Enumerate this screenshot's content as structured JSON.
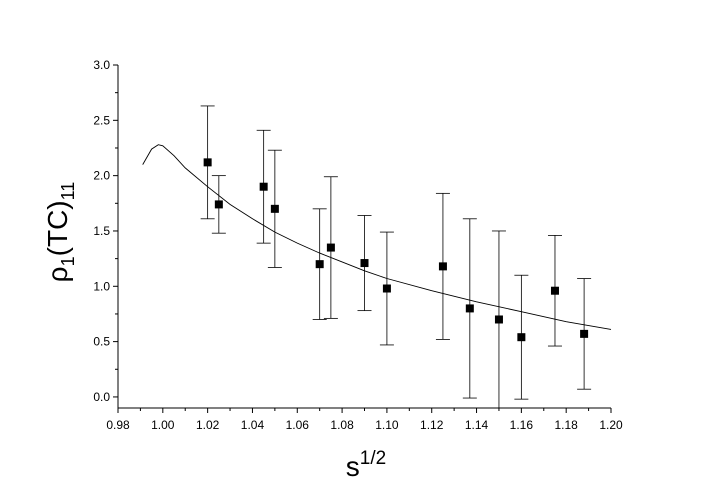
{
  "chart_data": {
    "type": "scatter",
    "title": "",
    "xlabel": "s",
    "xlabel_sup": "1/2",
    "ylabel": "ρ",
    "ylabel_sub1": "1",
    "ylabel_mid": "(TC)",
    "ylabel_sub2": "11",
    "xlim": [
      0.98,
      1.2
    ],
    "ylim": [
      -0.1,
      3.0
    ],
    "xticks": [
      "0.98",
      "1.00",
      "1.02",
      "1.04",
      "1.06",
      "1.08",
      "1.10",
      "1.12",
      "1.14",
      "1.16",
      "1.18",
      "1.20"
    ],
    "yticks": [
      "0.0",
      "0.5",
      "1.0",
      "1.5",
      "2.0",
      "2.5",
      "3.0"
    ],
    "grid": false,
    "legend": "none",
    "series": [
      {
        "marker": "filled-square",
        "error_bars": true,
        "points": [
          {
            "x": 1.02,
            "y": 2.12,
            "yerr": 0.51
          },
          {
            "x": 1.025,
            "y": 1.74,
            "yerr": 0.26
          },
          {
            "x": 1.045,
            "y": 1.9,
            "yerr": 0.51
          },
          {
            "x": 1.05,
            "y": 1.7,
            "yerr": 0.53
          },
          {
            "x": 1.07,
            "y": 1.2,
            "yerr": 0.5
          },
          {
            "x": 1.075,
            "y": 1.35,
            "yerr": 0.64
          },
          {
            "x": 1.09,
            "y": 1.21,
            "yerr": 0.43
          },
          {
            "x": 1.1,
            "y": 0.98,
            "yerr": 0.51
          },
          {
            "x": 1.125,
            "y": 1.18,
            "yerr": 0.66
          },
          {
            "x": 1.137,
            "y": 0.8,
            "yerr": 0.81
          },
          {
            "x": 1.15,
            "y": 0.7,
            "yerr": 0.8
          },
          {
            "x": 1.16,
            "y": 0.54,
            "yerr": 0.56
          },
          {
            "x": 1.175,
            "y": 0.96,
            "yerr": 0.5
          },
          {
            "x": 1.188,
            "y": 0.57,
            "yerr": 0.5
          }
        ]
      },
      {
        "marker": "none",
        "line": "solid-thin",
        "points": [
          {
            "x": 0.991,
            "y": 2.1
          },
          {
            "x": 0.995,
            "y": 2.24
          },
          {
            "x": 0.998,
            "y": 2.28
          },
          {
            "x": 1.0,
            "y": 2.27
          },
          {
            "x": 1.005,
            "y": 2.18
          },
          {
            "x": 1.01,
            "y": 2.07
          },
          {
            "x": 1.02,
            "y": 1.9
          },
          {
            "x": 1.03,
            "y": 1.74
          },
          {
            "x": 1.04,
            "y": 1.61
          },
          {
            "x": 1.05,
            "y": 1.49
          },
          {
            "x": 1.06,
            "y": 1.39
          },
          {
            "x": 1.07,
            "y": 1.3
          },
          {
            "x": 1.08,
            "y": 1.22
          },
          {
            "x": 1.09,
            "y": 1.14
          },
          {
            "x": 1.1,
            "y": 1.07
          },
          {
            "x": 1.12,
            "y": 0.96
          },
          {
            "x": 1.14,
            "y": 0.86
          },
          {
            "x": 1.16,
            "y": 0.77
          },
          {
            "x": 1.18,
            "y": 0.68
          },
          {
            "x": 1.2,
            "y": 0.61
          }
        ]
      }
    ]
  }
}
